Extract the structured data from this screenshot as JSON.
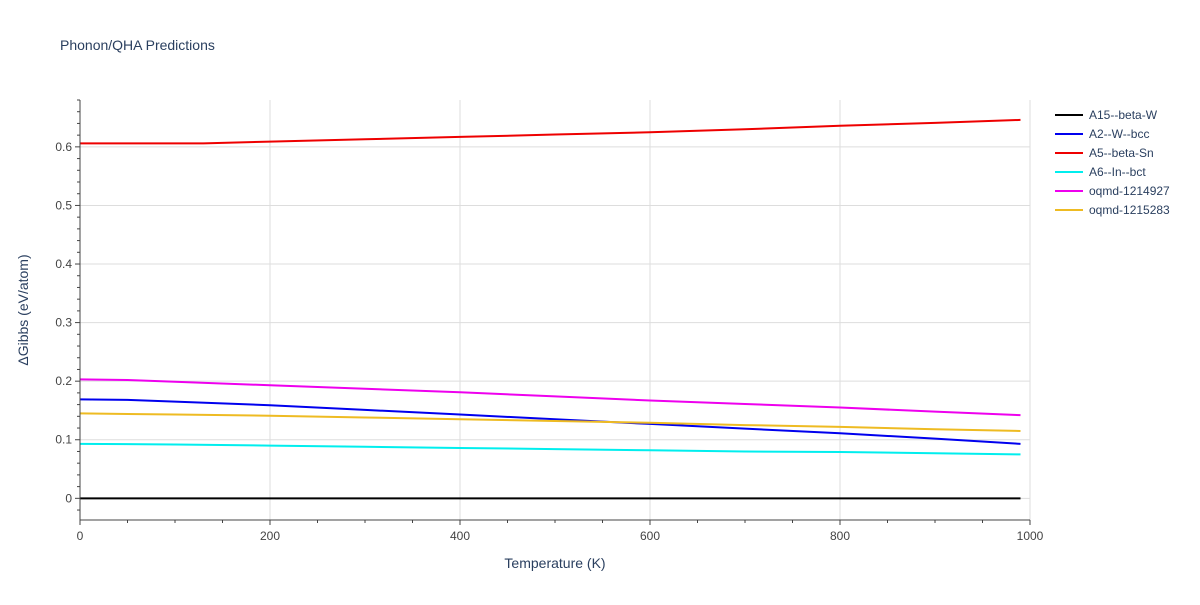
{
  "chart_data": {
    "type": "line",
    "title": "Phonon/QHA Predictions",
    "xlabel": "Temperature (K)",
    "ylabel": "ΔGibbs (eV/atom)",
    "xlim": [
      0,
      1000
    ],
    "ylim": [
      -0.037,
      0.68
    ],
    "x_ticks": [
      0,
      200,
      400,
      600,
      800,
      1000
    ],
    "y_ticks": [
      0,
      0.1,
      0.2,
      0.3,
      0.4,
      0.5,
      0.6
    ],
    "x_tick_labels": [
      "0",
      "200",
      "400",
      "600",
      "800",
      "1000"
    ],
    "y_tick_labels": [
      "0",
      "0.1",
      "0.2",
      "0.3",
      "0.4",
      "0.5",
      "0.6"
    ],
    "grid": true,
    "legend_position": "top-right",
    "series": [
      {
        "name": "A15--beta-W",
        "color": "#000000",
        "x": [
          0,
          100,
          200,
          300,
          400,
          500,
          600,
          700,
          800,
          900,
          990
        ],
        "y": [
          0,
          0,
          0,
          0,
          0,
          0,
          0,
          0,
          0,
          0,
          0
        ]
      },
      {
        "name": "A2--W--bcc",
        "color": "#0000ee",
        "x": [
          0,
          50,
          100,
          200,
          300,
          400,
          500,
          600,
          700,
          800,
          900,
          990
        ],
        "y": [
          0.169,
          0.168,
          0.165,
          0.159,
          0.151,
          0.143,
          0.135,
          0.127,
          0.119,
          0.111,
          0.102,
          0.093
        ]
      },
      {
        "name": "A5--beta-Sn",
        "color": "#ee0000",
        "x": [
          0,
          130,
          200,
          300,
          400,
          500,
          600,
          700,
          800,
          900,
          990
        ],
        "y": [
          0.606,
          0.606,
          0.609,
          0.613,
          0.617,
          0.621,
          0.625,
          0.63,
          0.636,
          0.641,
          0.646
        ]
      },
      {
        "name": "A6--In--bct",
        "color": "#00eeee",
        "x": [
          0,
          100,
          200,
          300,
          400,
          500,
          600,
          700,
          800,
          900,
          990
        ],
        "y": [
          0.093,
          0.092,
          0.09,
          0.088,
          0.086,
          0.084,
          0.082,
          0.08,
          0.079,
          0.077,
          0.075
        ]
      },
      {
        "name": "oqmd-1214927",
        "color": "#ee00ee",
        "x": [
          0,
          50,
          100,
          200,
          300,
          400,
          500,
          600,
          700,
          800,
          900,
          990
        ],
        "y": [
          0.203,
          0.202,
          0.199,
          0.193,
          0.187,
          0.181,
          0.174,
          0.167,
          0.161,
          0.155,
          0.148,
          0.142
        ]
      },
      {
        "name": "oqmd-1215283",
        "color": "#eebb22",
        "x": [
          0,
          100,
          200,
          300,
          400,
          500,
          600,
          700,
          800,
          900,
          990
        ],
        "y": [
          0.145,
          0.143,
          0.141,
          0.138,
          0.135,
          0.132,
          0.129,
          0.125,
          0.122,
          0.118,
          0.115
        ]
      }
    ]
  }
}
